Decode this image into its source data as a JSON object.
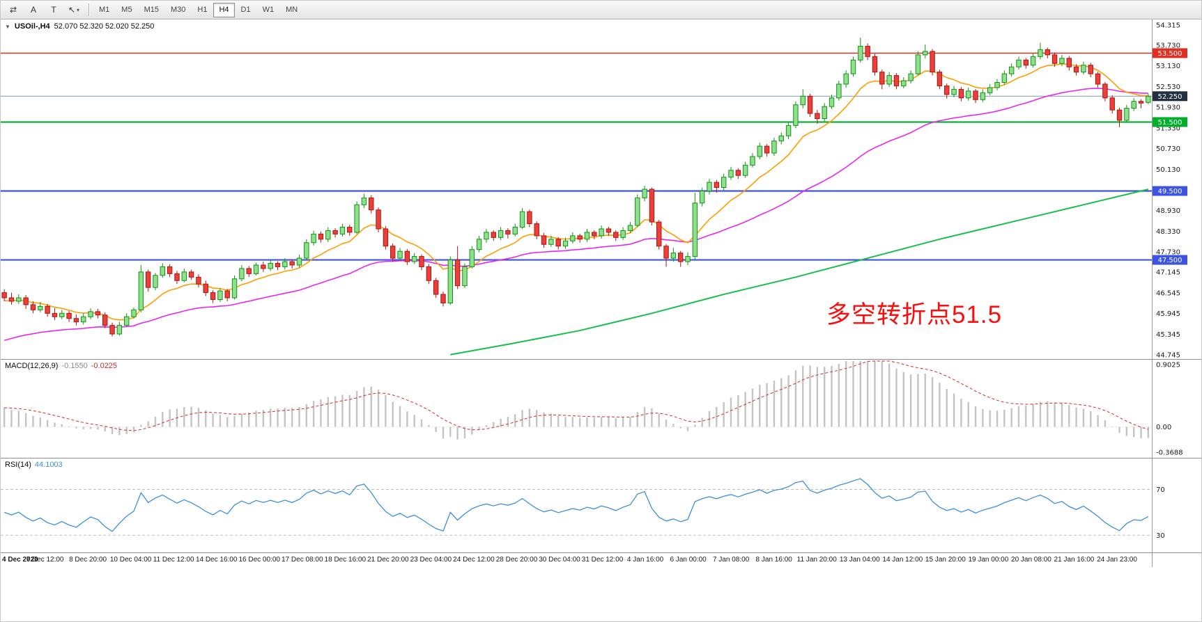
{
  "toolbar": {
    "tools": [
      {
        "name": "chart-shift",
        "glyph": "⇄"
      },
      {
        "name": "text-label-tool",
        "glyph": "A"
      },
      {
        "name": "text-box-tool",
        "glyph": "T"
      },
      {
        "name": "arrow-tools",
        "glyph": "↖",
        "caret": "▾"
      }
    ],
    "timeframes": [
      "M1",
      "M5",
      "M15",
      "M30",
      "H1",
      "H4",
      "D1",
      "W1",
      "MN"
    ],
    "active_timeframe": "H4"
  },
  "main_chart": {
    "dropdown_glyph": "▼",
    "title": "USOil-,H4",
    "ohlc_text": "52.070 52.320 52.020 52.250",
    "annotation": "多空转折点51.5",
    "annotation_color": "#fb0d0d",
    "price_max": 54.315,
    "price_min": 44.745,
    "y_axis_labels": [
      "54.315",
      "53.730",
      "53.130",
      "52.530",
      "51.930",
      "51.330",
      "50.730",
      "50.130",
      "49.530",
      "48.930",
      "48.330",
      "47.730",
      "47.145",
      "46.545",
      "45.945",
      "45.345",
      "44.745"
    ],
    "levels": [
      {
        "price": 53.5,
        "label": "53.500",
        "color": "#df2f22",
        "line_width": 1.6
      },
      {
        "price": 52.25,
        "label": "52.250",
        "color": "#22303f",
        "line_color": "#7c97ad",
        "line_width": 1
      },
      {
        "price": 51.5,
        "label": "51.500",
        "color": "#00ae2b",
        "line_width": 2.2
      },
      {
        "price": 49.5,
        "label": "49.500",
        "color": "#3c54e0",
        "line_width": 2.2
      },
      {
        "price": 47.5,
        "label": "47.500",
        "color": "#3c54e0",
        "line_width": 2.2
      }
    ]
  },
  "chart_data": {
    "type": "candlestick",
    "symbol": "USOil",
    "period": "H4",
    "up_fill": "#8fdf8f",
    "up_stroke": "#129412",
    "down_fill": "#e8403a",
    "down_stroke": "#b01510",
    "moving_averages": [
      {
        "name": "fast-ma",
        "type": "ema",
        "period": 10,
        "color": "#ff9e00"
      },
      {
        "name": "medium-ma",
        "type": "ema",
        "period": 40,
        "color": "#e926e9"
      },
      {
        "name": "slow-ma",
        "type": "ema",
        "period": 200,
        "color": "#17c04a"
      }
    ],
    "slow_ma_points": [
      [
        62,
        44.75
      ],
      [
        70,
        45.05
      ],
      [
        80,
        45.45
      ],
      [
        90,
        45.95
      ],
      [
        100,
        46.5
      ],
      [
        110,
        47.0
      ],
      [
        120,
        47.55
      ],
      [
        130,
        48.1
      ],
      [
        140,
        48.6
      ],
      [
        150,
        49.1
      ],
      [
        159,
        49.55
      ]
    ],
    "ohlc": [
      [
        46.55,
        46.65,
        46.3,
        46.4
      ],
      [
        46.4,
        46.55,
        46.2,
        46.3
      ],
      [
        46.3,
        46.5,
        46.22,
        46.4
      ],
      [
        46.4,
        46.48,
        46.08,
        46.2
      ],
      [
        46.2,
        46.3,
        45.95,
        46.05
      ],
      [
        46.05,
        46.28,
        45.98,
        46.15
      ],
      [
        46.15,
        46.22,
        45.85,
        45.95
      ],
      [
        45.95,
        46.1,
        45.75,
        45.85
      ],
      [
        45.85,
        46.05,
        45.78,
        45.95
      ],
      [
        45.95,
        46.02,
        45.7,
        45.8
      ],
      [
        45.8,
        45.92,
        45.6,
        45.7
      ],
      [
        45.7,
        45.95,
        45.62,
        45.85
      ],
      [
        45.85,
        46.1,
        45.78,
        46.0
      ],
      [
        46.0,
        46.08,
        45.8,
        45.9
      ],
      [
        45.9,
        45.98,
        45.52,
        45.6
      ],
      [
        45.6,
        45.68,
        45.28,
        45.35
      ],
      [
        45.35,
        45.7,
        45.3,
        45.6
      ],
      [
        45.6,
        45.95,
        45.55,
        45.85
      ],
      [
        45.85,
        46.12,
        45.8,
        46.05
      ],
      [
        46.05,
        47.35,
        45.98,
        47.15
      ],
      [
        47.15,
        47.22,
        46.58,
        46.7
      ],
      [
        46.7,
        47.12,
        46.62,
        47.05
      ],
      [
        47.05,
        47.4,
        46.98,
        47.3
      ],
      [
        47.3,
        47.38,
        47.0,
        47.1
      ],
      [
        47.1,
        47.18,
        46.8,
        46.9
      ],
      [
        46.9,
        47.25,
        46.85,
        47.15
      ],
      [
        47.15,
        47.22,
        46.92,
        47.0
      ],
      [
        47.0,
        47.08,
        46.7,
        46.8
      ],
      [
        46.8,
        46.9,
        46.45,
        46.55
      ],
      [
        46.55,
        46.62,
        46.25,
        46.35
      ],
      [
        46.35,
        46.68,
        46.28,
        46.6
      ],
      [
        46.6,
        46.66,
        46.3,
        46.4
      ],
      [
        46.4,
        47.05,
        46.35,
        46.95
      ],
      [
        46.95,
        47.35,
        46.88,
        47.25
      ],
      [
        47.25,
        47.32,
        47.0,
        47.1
      ],
      [
        47.1,
        47.42,
        47.05,
        47.35
      ],
      [
        47.35,
        47.45,
        47.15,
        47.25
      ],
      [
        47.25,
        47.5,
        47.18,
        47.4
      ],
      [
        47.4,
        47.46,
        47.2,
        47.3
      ],
      [
        47.3,
        47.55,
        47.22,
        47.45
      ],
      [
        47.45,
        47.52,
        47.25,
        47.35
      ],
      [
        47.35,
        47.65,
        47.28,
        47.55
      ],
      [
        47.55,
        48.1,
        47.5,
        48.0
      ],
      [
        48.0,
        48.35,
        47.92,
        48.25
      ],
      [
        48.25,
        48.32,
        48.0,
        48.1
      ],
      [
        48.1,
        48.45,
        48.02,
        48.35
      ],
      [
        48.35,
        48.42,
        48.15,
        48.25
      ],
      [
        48.25,
        48.55,
        48.18,
        48.45
      ],
      [
        48.45,
        48.52,
        48.2,
        48.3
      ],
      [
        48.3,
        49.2,
        48.25,
        49.1
      ],
      [
        49.1,
        49.42,
        49.0,
        49.3
      ],
      [
        49.3,
        49.38,
        48.85,
        48.95
      ],
      [
        48.95,
        49.02,
        48.3,
        48.4
      ],
      [
        48.4,
        48.48,
        47.8,
        47.9
      ],
      [
        47.9,
        47.98,
        47.45,
        47.55
      ],
      [
        47.55,
        47.85,
        47.48,
        47.75
      ],
      [
        47.75,
        47.82,
        47.35,
        47.45
      ],
      [
        47.45,
        47.7,
        47.38,
        47.6
      ],
      [
        47.6,
        47.66,
        47.2,
        47.3
      ],
      [
        47.3,
        47.38,
        46.8,
        46.9
      ],
      [
        46.9,
        46.98,
        46.4,
        46.5
      ],
      [
        46.5,
        46.58,
        46.15,
        46.25
      ],
      [
        46.25,
        47.6,
        46.2,
        47.5
      ],
      [
        47.5,
        47.9,
        46.65,
        46.75
      ],
      [
        46.75,
        47.4,
        46.68,
        47.3
      ],
      [
        47.3,
        47.9,
        47.25,
        47.8
      ],
      [
        47.8,
        48.2,
        47.72,
        48.1
      ],
      [
        48.1,
        48.4,
        48.0,
        48.3
      ],
      [
        48.3,
        48.36,
        48.05,
        48.15
      ],
      [
        48.15,
        48.45,
        48.08,
        48.35
      ],
      [
        48.35,
        48.42,
        48.12,
        48.25
      ],
      [
        48.25,
        48.55,
        48.18,
        48.45
      ],
      [
        48.45,
        49.0,
        48.4,
        48.9
      ],
      [
        48.9,
        48.96,
        48.45,
        48.55
      ],
      [
        48.55,
        48.62,
        48.1,
        48.2
      ],
      [
        48.2,
        48.28,
        47.85,
        47.95
      ],
      [
        47.95,
        48.2,
        47.88,
        48.1
      ],
      [
        48.1,
        48.16,
        47.8,
        47.9
      ],
      [
        47.9,
        48.15,
        47.82,
        48.05
      ],
      [
        48.05,
        48.3,
        47.98,
        48.2
      ],
      [
        48.2,
        48.26,
        48.0,
        48.1
      ],
      [
        48.1,
        48.4,
        48.02,
        48.3
      ],
      [
        48.3,
        48.36,
        48.1,
        48.2
      ],
      [
        48.2,
        48.5,
        48.12,
        48.4
      ],
      [
        48.4,
        48.46,
        48.2,
        48.3
      ],
      [
        48.3,
        48.36,
        48.05,
        48.15
      ],
      [
        48.15,
        48.45,
        48.08,
        48.35
      ],
      [
        48.35,
        48.6,
        48.28,
        48.5
      ],
      [
        48.5,
        49.4,
        48.45,
        49.3
      ],
      [
        49.3,
        49.65,
        49.2,
        49.55
      ],
      [
        49.55,
        49.6,
        48.5,
        48.6
      ],
      [
        48.6,
        48.66,
        47.8,
        47.9
      ],
      [
        47.9,
        47.96,
        47.3,
        47.55
      ],
      [
        47.55,
        47.85,
        47.45,
        47.7
      ],
      [
        47.7,
        47.76,
        47.3,
        47.45
      ],
      [
        47.45,
        47.72,
        47.35,
        47.6
      ],
      [
        47.6,
        49.45,
        47.52,
        49.15
      ],
      [
        49.15,
        49.6,
        49.05,
        49.5
      ],
      [
        49.5,
        49.85,
        49.4,
        49.75
      ],
      [
        49.75,
        49.82,
        49.45,
        49.6
      ],
      [
        49.6,
        50.0,
        49.52,
        49.9
      ],
      [
        49.9,
        50.2,
        49.82,
        50.1
      ],
      [
        50.1,
        50.16,
        49.85,
        49.95
      ],
      [
        49.95,
        50.35,
        49.88,
        50.25
      ],
      [
        50.25,
        50.6,
        50.18,
        50.5
      ],
      [
        50.5,
        50.9,
        50.42,
        50.8
      ],
      [
        50.8,
        50.86,
        50.5,
        50.6
      ],
      [
        50.6,
        51.05,
        50.52,
        50.95
      ],
      [
        50.95,
        51.2,
        50.85,
        51.1
      ],
      [
        51.1,
        51.5,
        51.0,
        51.4
      ],
      [
        51.4,
        52.1,
        51.32,
        52.0
      ],
      [
        52.0,
        52.45,
        51.9,
        52.25
      ],
      [
        52.25,
        52.32,
        51.65,
        51.75
      ],
      [
        51.75,
        51.85,
        51.45,
        51.6
      ],
      [
        51.6,
        52.05,
        51.52,
        51.95
      ],
      [
        51.95,
        52.3,
        51.88,
        52.2
      ],
      [
        52.2,
        52.7,
        52.12,
        52.6
      ],
      [
        52.6,
        53.0,
        52.5,
        52.9
      ],
      [
        52.9,
        53.4,
        52.82,
        53.3
      ],
      [
        53.3,
        53.95,
        53.22,
        53.7
      ],
      [
        53.7,
        53.78,
        53.3,
        53.4
      ],
      [
        53.4,
        53.48,
        52.85,
        52.95
      ],
      [
        52.95,
        53.02,
        52.45,
        52.6
      ],
      [
        52.6,
        52.95,
        52.52,
        52.85
      ],
      [
        52.85,
        52.92,
        52.45,
        52.55
      ],
      [
        52.55,
        52.8,
        52.48,
        52.7
      ],
      [
        52.7,
        53.0,
        52.62,
        52.9
      ],
      [
        52.9,
        53.55,
        52.85,
        53.45
      ],
      [
        53.45,
        53.75,
        53.35,
        53.55
      ],
      [
        53.55,
        53.62,
        52.85,
        52.95
      ],
      [
        52.95,
        53.02,
        52.45,
        52.55
      ],
      [
        52.55,
        52.62,
        52.18,
        52.3
      ],
      [
        52.3,
        52.55,
        52.22,
        52.45
      ],
      [
        52.45,
        52.52,
        52.1,
        52.2
      ],
      [
        52.2,
        52.5,
        52.12,
        52.4
      ],
      [
        52.4,
        52.46,
        52.05,
        52.15
      ],
      [
        52.15,
        52.45,
        52.08,
        52.35
      ],
      [
        52.35,
        52.6,
        52.28,
        52.5
      ],
      [
        52.5,
        52.75,
        52.42,
        52.65
      ],
      [
        52.65,
        53.0,
        52.58,
        52.9
      ],
      [
        52.9,
        53.2,
        52.82,
        53.1
      ],
      [
        53.1,
        53.4,
        53.02,
        53.3
      ],
      [
        53.3,
        53.36,
        53.05,
        53.15
      ],
      [
        53.15,
        53.5,
        53.08,
        53.4
      ],
      [
        53.4,
        53.8,
        53.32,
        53.6
      ],
      [
        53.6,
        53.66,
        53.35,
        53.45
      ],
      [
        53.45,
        53.52,
        53.1,
        53.2
      ],
      [
        53.2,
        53.45,
        53.12,
        53.35
      ],
      [
        53.35,
        53.42,
        53.0,
        53.1
      ],
      [
        53.1,
        53.18,
        52.85,
        52.95
      ],
      [
        52.95,
        53.25,
        52.88,
        53.15
      ],
      [
        53.15,
        53.22,
        52.8,
        52.9
      ],
      [
        52.9,
        52.96,
        52.5,
        52.6
      ],
      [
        52.6,
        52.66,
        52.1,
        52.2
      ],
      [
        52.2,
        52.28,
        51.75,
        51.85
      ],
      [
        51.85,
        51.92,
        51.35,
        51.55
      ],
      [
        51.55,
        52.0,
        51.48,
        51.9
      ],
      [
        51.9,
        52.2,
        51.82,
        52.1
      ],
      [
        52.1,
        52.16,
        51.9,
        52.05
      ],
      [
        52.07,
        52.32,
        52.02,
        52.25
      ]
    ],
    "x_labels": [
      "4 Dec 2020",
      "7 Dec 12:00",
      "8 Dec 20:00",
      "10 Dec 04:00",
      "11 Dec 12:00",
      "14 Dec 16:00",
      "16 Dec 00:00",
      "17 Dec 08:00",
      "18 Dec 16:00",
      "21 Dec 20:00",
      "23 Dec 04:00",
      "24 Dec 12:00",
      "28 Dec 20:00",
      "30 Dec 04:00",
      "31 Dec 12:00",
      "4 Jan 16:00",
      "6 Jan 00:00",
      "7 Jan 08:00",
      "8 Jan 16:00",
      "11 Jan 20:00",
      "13 Jan 04:00",
      "14 Jan 12:00",
      "15 Jan 20:00",
      "19 Jan 00:00",
      "20 Jan 08:00",
      "21 Jan 16:00",
      "24 Jan 23:00"
    ]
  },
  "macd": {
    "name_label": "MACD(12,26,9)",
    "main_value": "-0.1550",
    "signal_value": "-0.0225",
    "fast": 12,
    "slow": 26,
    "signal": 9,
    "axis_labels": {
      "max": "0.9025",
      "zero": "0.00",
      "min": "-0.3688"
    },
    "bar_color": "#c4c4c4",
    "signal_color": "#d93a3a"
  },
  "rsi": {
    "name_label": "RSI(14)",
    "value": "44.1003",
    "period": 14,
    "levels": [
      70,
      30
    ],
    "axis_labels": [
      "70",
      "30"
    ],
    "line_color": "#3f8edc"
  }
}
